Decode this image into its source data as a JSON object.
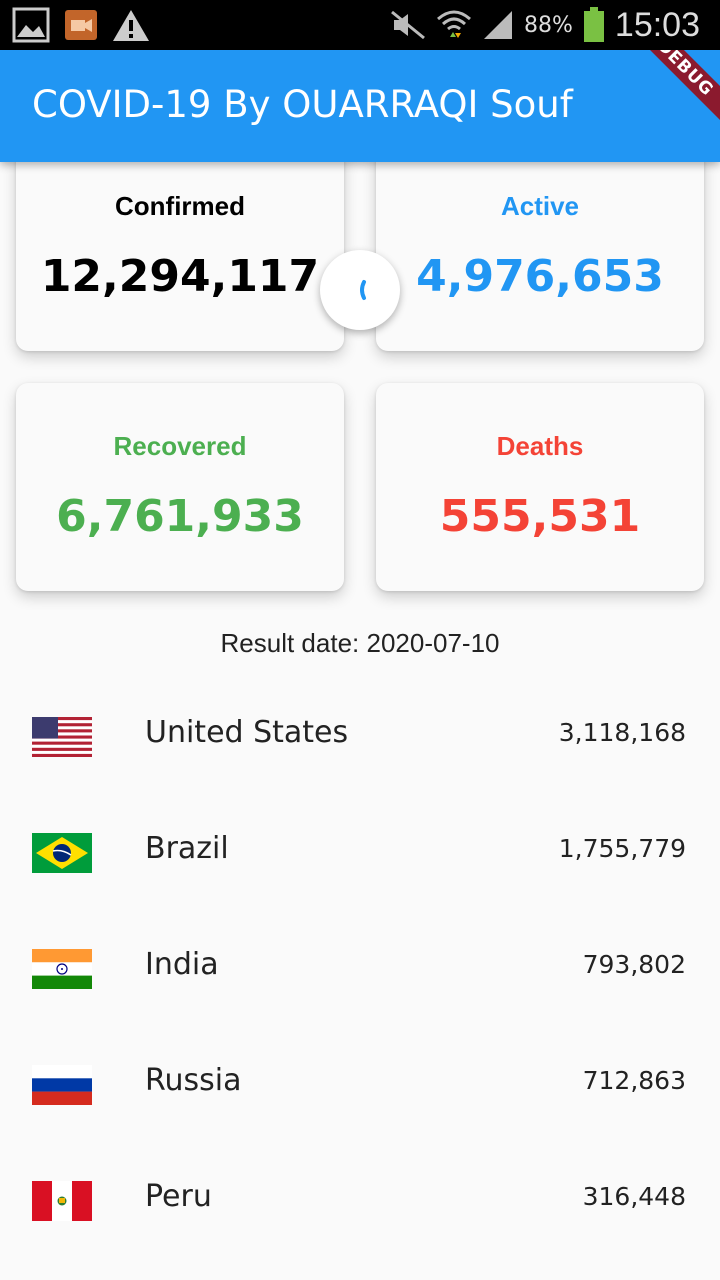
{
  "status_bar": {
    "battery_percent": "88%",
    "time": "15:03",
    "icons": [
      "gallery-icon",
      "video-icon",
      "warning-icon",
      "mute-icon",
      "wifi-icon",
      "signal-icon",
      "battery-icon"
    ]
  },
  "app_bar": {
    "title": "COVID-19 By OUARRAQI Souf",
    "debug_banner": "DEBUG",
    "color": "#2196f3"
  },
  "stats": {
    "confirmed": {
      "label": "Confirmed",
      "value": "12,294,117",
      "color": "#000000"
    },
    "active": {
      "label": "Active",
      "value": "4,976,653",
      "color": "#2196f3"
    },
    "recovered": {
      "label": "Recovered",
      "value": "6,761,933",
      "color": "#4caf50"
    },
    "deaths": {
      "label": "Deaths",
      "value": "555,531",
      "color": "#f44336"
    }
  },
  "result_date": "Result date: 2020-07-10",
  "countries": [
    {
      "name": "United States",
      "count": "3,118,168",
      "flag": "us-flag-icon"
    },
    {
      "name": "Brazil",
      "count": "1,755,779",
      "flag": "brazil-flag-icon"
    },
    {
      "name": "India",
      "count": "793,802",
      "flag": "india-flag-icon"
    },
    {
      "name": "Russia",
      "count": "712,863",
      "flag": "russia-flag-icon"
    },
    {
      "name": "Peru",
      "count": "316,448",
      "flag": "peru-flag-icon"
    }
  ]
}
